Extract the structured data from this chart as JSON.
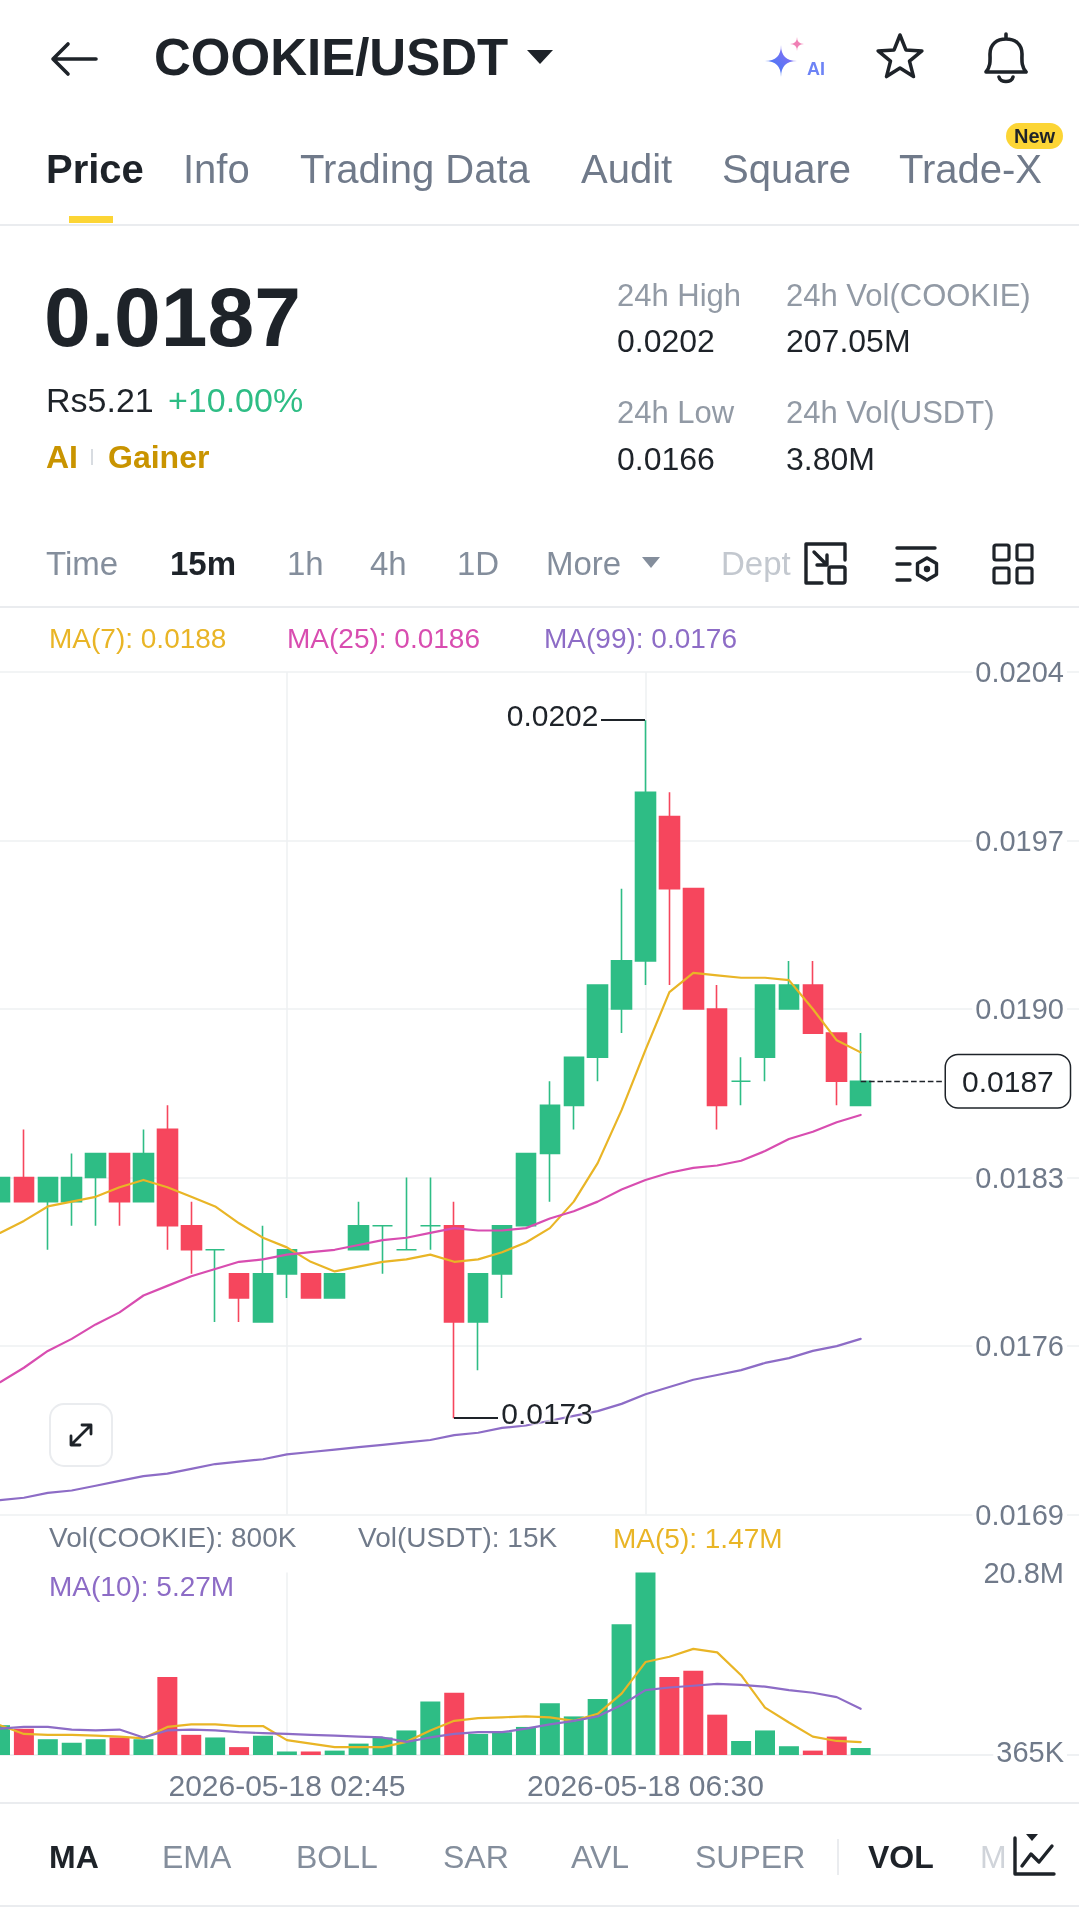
{
  "chart_data": [
    {
      "type": "other",
      "title": "COOKIE/USDT",
      "annotations": [
        "Price",
        "Info",
        "Trading Data",
        "Audit",
        "Square",
        "Trade-X",
        "New",
        "0.0187",
        "Rs5.21",
        "+10.00%",
        "AI",
        "Gainer",
        "24h High",
        "0.0202",
        "24h Vol(COOKIE)",
        "207.05M",
        "24h Low",
        "0.0166",
        "24h Vol(USDT)",
        "3.80M",
        "Time",
        "15m",
        "1h",
        "4h",
        "1D",
        "More",
        "Dept",
        "AI"
      ]
    },
    {
      "type": "candlestick",
      "x": [
        "2026-05-17T23:45",
        "2026-05-18T00:00",
        "2026-05-18T00:15",
        "2026-05-18T00:30",
        "2026-05-18T00:45",
        "2026-05-18T01:00",
        "2026-05-18T01:15",
        "2026-05-18T01:30",
        "2026-05-18T01:45",
        "2026-05-18T02:00",
        "2026-05-18T02:15",
        "2026-05-18T02:30",
        "2026-05-18T02:45",
        "2026-05-18T03:00",
        "2026-05-18T03:15",
        "2026-05-18T03:30",
        "2026-05-18T03:45",
        "2026-05-18T04:00",
        "2026-05-18T04:15",
        "2026-05-18T04:30",
        "2026-05-18T04:45",
        "2026-05-18T05:00",
        "2026-05-18T05:15",
        "2026-05-18T05:30",
        "2026-05-18T05:45",
        "2026-05-18T06:00",
        "2026-05-18T06:15",
        "2026-05-18T06:30",
        "2026-05-18T06:45",
        "2026-05-18T07:00",
        "2026-05-18T07:15",
        "2026-05-18T07:30",
        "2026-05-18T07:45",
        "2026-05-18T08:00",
        "2026-05-18T08:15",
        "2026-05-18T08:30",
        "2026-05-18T08:45"
      ],
      "ohlc": [
        [
          0.0182,
          0.0183,
          0.0182,
          0.0183
        ],
        [
          0.0183,
          0.0185,
          0.0182,
          0.0182
        ],
        [
          0.0182,
          0.0183,
          0.018,
          0.0183
        ],
        [
          0.0182,
          0.0184,
          0.0181,
          0.0183
        ],
        [
          0.0183,
          0.0184,
          0.0181,
          0.0184
        ],
        [
          0.0184,
          0.0184,
          0.0181,
          0.0182
        ],
        [
          0.0182,
          0.0185,
          0.0182,
          0.0184
        ],
        [
          0.0185,
          0.0186,
          0.018,
          0.0181
        ],
        [
          0.0181,
          0.0182,
          0.0179,
          0.018
        ],
        [
          0.018,
          0.018,
          0.0177,
          0.018
        ],
        [
          0.0179,
          0.0179,
          0.0177,
          0.0178
        ],
        [
          0.0177,
          0.0181,
          0.0177,
          0.0179
        ],
        [
          0.0179,
          0.018,
          0.0178,
          0.018
        ],
        [
          0.0179,
          0.0179,
          0.0178,
          0.0178
        ],
        [
          0.0178,
          0.0179,
          0.0178,
          0.0179
        ],
        [
          0.018,
          0.0182,
          0.018,
          0.0181
        ],
        [
          0.0181,
          0.0181,
          0.0179,
          0.0181
        ],
        [
          0.018,
          0.0183,
          0.018,
          0.018
        ],
        [
          0.0181,
          0.0183,
          0.018,
          0.0181
        ],
        [
          0.0181,
          0.0182,
          0.0173,
          0.0177
        ],
        [
          0.0177,
          0.0179,
          0.0175,
          0.0179
        ],
        [
          0.0179,
          0.0181,
          0.0178,
          0.0181
        ],
        [
          0.0181,
          0.0184,
          0.0181,
          0.0184
        ],
        [
          0.0184,
          0.0187,
          0.0182,
          0.0186
        ],
        [
          0.0186,
          0.0188,
          0.0185,
          0.0188
        ],
        [
          0.0188,
          0.0191,
          0.0187,
          0.0191
        ],
        [
          0.019,
          0.0195,
          0.0189,
          0.0192
        ],
        [
          0.0192,
          0.0202,
          0.0191,
          0.0199
        ],
        [
          0.0198,
          0.0199,
          0.0191,
          0.0195
        ],
        [
          0.0195,
          0.0195,
          0.019,
          0.019
        ],
        [
          0.019,
          0.0191,
          0.0185,
          0.0186
        ],
        [
          0.0187,
          0.0188,
          0.0186,
          0.0187
        ],
        [
          0.0188,
          0.0191,
          0.0187,
          0.0191
        ],
        [
          0.019,
          0.0192,
          0.019,
          0.0191
        ],
        [
          0.0191,
          0.0192,
          0.0189,
          0.0189
        ],
        [
          0.0189,
          0.0189,
          0.0186,
          0.0187
        ],
        [
          0.0186,
          0.0189,
          0.0186,
          0.0187
        ]
      ],
      "colors": [
        "#2ebd85",
        "#f6465d",
        "#2ebd85",
        "#2ebd85",
        "#2ebd85",
        "#f6465d",
        "#2ebd85",
        "#f6465d",
        "#f6465d",
        "#2ebd85",
        "#f6465d",
        "#2ebd85",
        "#2ebd85",
        "#f6465d",
        "#2ebd85",
        "#2ebd85",
        "#2ebd85",
        "#2ebd85",
        "#2ebd85",
        "#f6465d",
        "#2ebd85",
        "#2ebd85",
        "#2ebd85",
        "#2ebd85",
        "#2ebd85",
        "#2ebd85",
        "#2ebd85",
        "#2ebd85",
        "#f6465d",
        "#f6465d",
        "#f6465d",
        "#2ebd85",
        "#2ebd85",
        "#2ebd85",
        "#f6465d",
        "#f6465d",
        "#2ebd85"
      ],
      "series": [
        {
          "type": "line",
          "name": "MA(7): 0.0188",
          "color": "#e9b526",
          "values": [
            0.01807,
            0.01812,
            0.01818,
            0.0182,
            0.01822,
            0.01826,
            0.01829,
            0.01826,
            0.01822,
            0.01818,
            0.01811,
            0.01805,
            0.01801,
            0.01795,
            0.01791,
            0.01793,
            0.01795,
            0.01796,
            0.01798,
            0.01795,
            0.01796,
            0.01799,
            0.01803,
            0.01809,
            0.0182,
            0.01836,
            0.01858,
            0.01883,
            0.01907,
            0.01915,
            0.01914,
            0.01913,
            0.01913,
            0.01912,
            0.019,
            0.01887,
            0.01882
          ]
        },
        {
          "type": "line",
          "name": "MA(25): 0.0186",
          "color": "#d84db0",
          "values": [
            0.01745,
            0.01751,
            0.01758,
            0.01763,
            0.01769,
            0.01774,
            0.01781,
            0.01785,
            0.01789,
            0.01792,
            0.01795,
            0.01796,
            0.01798,
            0.01799,
            0.018,
            0.01802,
            0.01804,
            0.01805,
            0.01807,
            0.01809,
            0.01808,
            0.01808,
            0.01809,
            0.01813,
            0.01816,
            0.0182,
            0.01825,
            0.01829,
            0.01832,
            0.01834,
            0.01835,
            0.01837,
            0.01841,
            0.01846,
            0.01849,
            0.01853,
            0.01856
          ]
        },
        {
          "type": "line",
          "name": "MA(99): 0.0176",
          "color": "#8d6cc6",
          "values": [
            0.01696,
            0.01697,
            0.01699,
            0.017,
            0.01702,
            0.01704,
            0.01706,
            0.01707,
            0.01709,
            0.01711,
            0.01712,
            0.01713,
            0.01715,
            0.01716,
            0.01717,
            0.01718,
            0.01719,
            0.0172,
            0.01721,
            0.01723,
            0.01724,
            0.01726,
            0.01727,
            0.01729,
            0.01731,
            0.01733,
            0.01736,
            0.0174,
            0.01743,
            0.01746,
            0.01748,
            0.0175,
            0.01753,
            0.01755,
            0.01758,
            0.0176,
            0.01763
          ]
        }
      ],
      "xlim": [
        "2026-05-17T23:45",
        "2026-05-18T11:02"
      ],
      "xticks": [
        {
          "value": "2026-05-18T02:45",
          "label": null
        },
        {
          "value": "2026-05-18T06:30",
          "label": null
        }
      ],
      "ylim": [
        0.0169,
        0.0204
      ],
      "yticks": [
        0.0169,
        0.0176,
        0.0183,
        {
          "value": 0.019,
          "label": "0.0190"
        },
        0.0197,
        0.0204
      ],
      "grid": true,
      "legend": "top left",
      "tick_labels": "y",
      "marker": "none",
      "annotations": [
        {
          "text": "0.0202",
          "x": "2026-05-18T06:30",
          "y": 0.0202
        },
        {
          "text": "0.0173",
          "x": "2026-05-18T04:30",
          "y": 0.0173
        }
      ],
      "ref_lines": [
        {
          "axis": "y",
          "value": 0.0187,
          "label": "0.0187",
          "line_style": "dashed",
          "color": "#1e2329"
        }
      ]
    },
    {
      "type": "bar",
      "x": [
        "2026-05-17T23:45",
        "2026-05-18T00:00",
        "2026-05-18T00:15",
        "2026-05-18T00:30",
        "2026-05-18T00:45",
        "2026-05-18T01:00",
        "2026-05-18T01:15",
        "2026-05-18T01:30",
        "2026-05-18T01:45",
        "2026-05-18T02:00",
        "2026-05-18T02:15",
        "2026-05-18T02:30",
        "2026-05-18T02:45",
        "2026-05-18T03:00",
        "2026-05-18T03:15",
        "2026-05-18T03:30",
        "2026-05-18T03:45",
        "2026-05-18T04:00",
        "2026-05-18T04:15",
        "2026-05-18T04:30",
        "2026-05-18T04:45",
        "2026-05-18T05:00",
        "2026-05-18T05:15",
        "2026-05-18T05:30",
        "2026-05-18T05:45",
        "2026-05-18T06:00",
        "2026-05-18T06:15",
        "2026-05-18T06:30",
        "2026-05-18T06:45",
        "2026-05-18T07:00",
        "2026-05-18T07:15",
        "2026-05-18T07:30",
        "2026-05-18T07:45",
        "2026-05-18T08:00",
        "2026-05-18T08:15",
        "2026-05-18T08:30",
        "2026-05-18T08:45"
      ],
      "series": [
        {
          "type": "bar",
          "values": [
            3400000,
            3000000,
            1800000,
            1400000,
            1800000,
            2000000,
            1800000,
            8900000,
            2300000,
            2000000,
            900000,
            2200000,
            400000,
            400000,
            500000,
            1300000,
            2000000,
            2800000,
            6100000,
            7100000,
            2400000,
            2600000,
            3200000,
            5900000,
            4400000,
            6400000,
            14900000,
            20800000,
            8900000,
            9600000,
            4600000,
            1600000,
            2800000,
            1000000,
            500000,
            2100000,
            800000
          ],
          "colors": [
            "#2ebd85",
            "#f6465d",
            "#2ebd85",
            "#2ebd85",
            "#2ebd85",
            "#f6465d",
            "#2ebd85",
            "#f6465d",
            "#f6465d",
            "#2ebd85",
            "#f6465d",
            "#2ebd85",
            "#2ebd85",
            "#f6465d",
            "#2ebd85",
            "#2ebd85",
            "#2ebd85",
            "#2ebd85",
            "#2ebd85",
            "#f6465d",
            "#2ebd85",
            "#2ebd85",
            "#2ebd85",
            "#2ebd85",
            "#2ebd85",
            "#2ebd85",
            "#2ebd85",
            "#2ebd85",
            "#f6465d",
            "#f6465d",
            "#f6465d",
            "#2ebd85",
            "#2ebd85",
            "#2ebd85",
            "#f6465d",
            "#f6465d",
            "#2ebd85"
          ]
        },
        {
          "type": "line",
          "name": "MA(5): 1.47M",
          "color": "#e9b526",
          "values": [
            3400000,
            2400000,
            2300000,
            2300000,
            2200000,
            2100000,
            1900000,
            3200000,
            3500000,
            3500000,
            3300000,
            3300000,
            1700000,
            1300000,
            900000,
            900000,
            900000,
            1500000,
            2800000,
            3900000,
            4200000,
            4300000,
            4400000,
            4300000,
            3900000,
            4700000,
            7000000,
            10600000,
            11200000,
            12100000,
            11700000,
            9100000,
            5400000,
            3700000,
            2100000,
            1600000,
            1470000
          ]
        },
        {
          "type": "line",
          "name": "MA(10): 5.27M",
          "color": "#8d6cc6",
          "values": [
            3000000,
            3200000,
            3200000,
            2900000,
            2800000,
            2900000,
            2000000,
            2800000,
            2900000,
            2800000,
            2600000,
            2500000,
            2400000,
            2300000,
            2200000,
            2100000,
            2000000,
            1500000,
            2000000,
            2400000,
            2600000,
            2600000,
            3000000,
            3500000,
            3900000,
            4400000,
            5700000,
            7400000,
            7700000,
            7900000,
            8100000,
            8000000,
            7800000,
            7400000,
            7100000,
            6600000,
            5270000
          ]
        }
      ],
      "xlim": [
        "2026-05-17T23:45",
        "2026-05-18T11:02"
      ],
      "xticks": [
        {
          "value": "2026-05-18T02:45",
          "label": "2026-05-18 02:45"
        },
        {
          "value": "2026-05-18T06:30",
          "label": "2026-05-18 06:30"
        }
      ],
      "ylim": [
        0,
        20800000
      ],
      "yticks": [
        {
          "value": 365000,
          "label": "365K"
        },
        {
          "value": 20800000,
          "label": "20.8M"
        }
      ],
      "grid": "x",
      "legend": "top left",
      "marker": "none",
      "annotations": [
        "Vol(COOKIE): 800K",
        "Vol(USDT): 15K"
      ]
    },
    {
      "type": "other",
      "annotations": [
        "MA",
        "EMA",
        "BOLL",
        "SAR",
        "AVL",
        "SUPER",
        "VOL",
        "M"
      ]
    }
  ]
}
